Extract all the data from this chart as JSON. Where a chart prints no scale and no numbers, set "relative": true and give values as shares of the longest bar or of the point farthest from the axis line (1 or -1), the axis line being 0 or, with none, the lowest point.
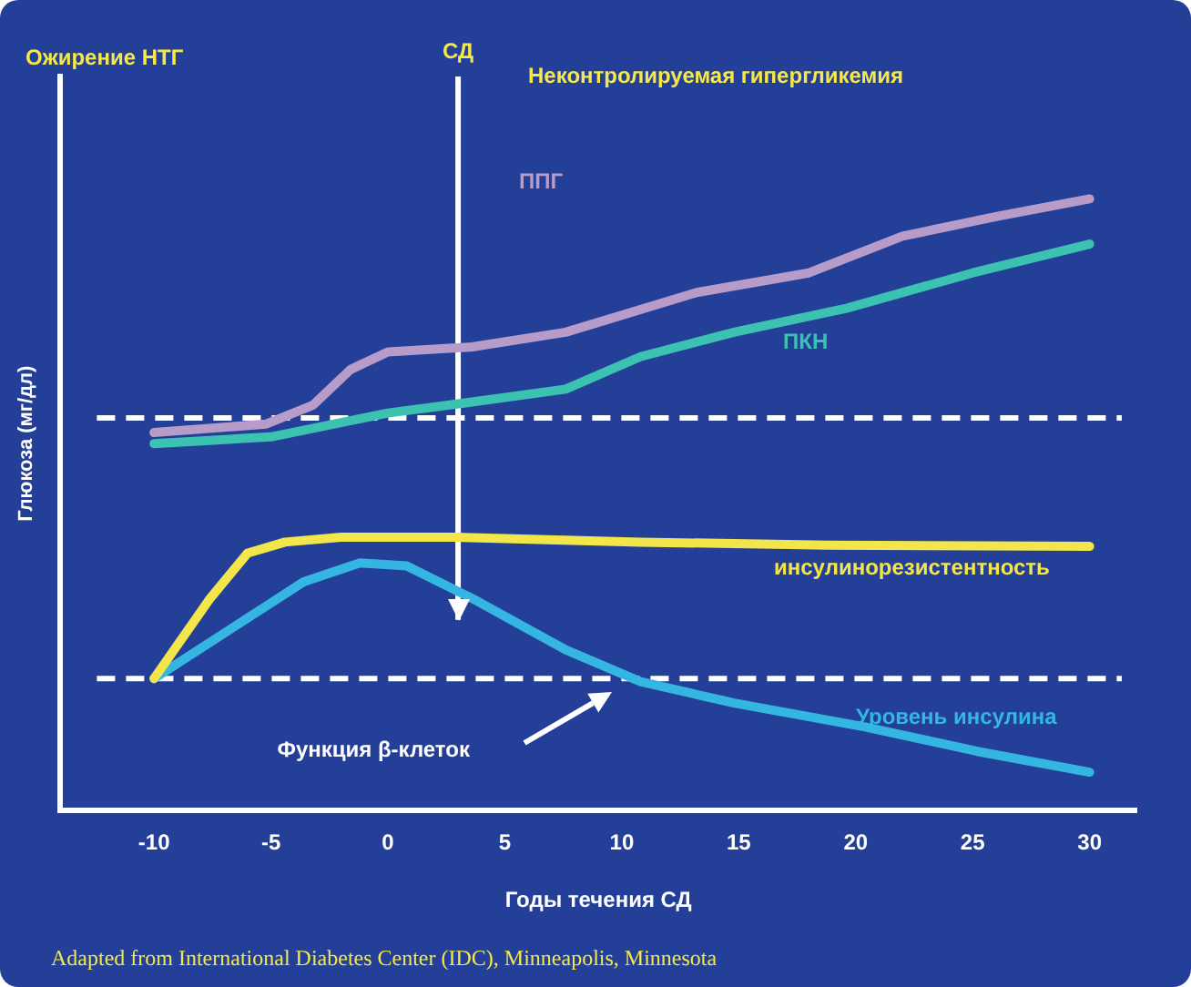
{
  "chart_data": {
    "type": "line",
    "relative": true,
    "xlabel": "Годы течения СД",
    "ylabel": "Глюкоза (мг/дл)",
    "xlim": [
      -14,
      32
    ],
    "xticks": [
      -10,
      -5,
      0,
      5,
      10,
      15,
      20,
      25,
      30
    ],
    "grid": false,
    "legend": false,
    "marker": "none",
    "line_style": "solid",
    "series": [
      {
        "name": "ППГ",
        "color": "#b79cc9",
        "x": [
          -10,
          -5.2,
          -3.2,
          -1.6,
          0,
          3.6,
          7.6,
          13.2,
          18,
          22,
          26,
          30
        ],
        "values": [
          0.618,
          0.632,
          0.663,
          0.721,
          0.75,
          0.758,
          0.782,
          0.847,
          0.879,
          0.939,
          0.971,
          1
        ]
      },
      {
        "name": "ПКН",
        "color": "#3cc2b0",
        "x": [
          -10,
          -5,
          0,
          3.6,
          7.6,
          10.8,
          14.8,
          19.6,
          25,
          30
        ],
        "values": [
          0.6,
          0.611,
          0.65,
          0.668,
          0.689,
          0.742,
          0.782,
          0.821,
          0.879,
          0.926
        ]
      },
      {
        "name": "инсулинорезистентность",
        "color": "#f2e64a",
        "x": [
          -10,
          -7.6,
          -6,
          -4.4,
          -2,
          2.8,
          10.8,
          18.8,
          30
        ],
        "values": [
          0.216,
          0.347,
          0.421,
          0.439,
          0.447,
          0.447,
          0.439,
          0.434,
          0.432
        ]
      },
      {
        "name": "Уровень инсулина",
        "color": "#35b6e2",
        "x": [
          -10,
          -6.8,
          -3.6,
          -1.2,
          0.8,
          3.6,
          7.6,
          10.8,
          14.8,
          20.4,
          25.2,
          30
        ],
        "values": [
          0.216,
          0.295,
          0.374,
          0.405,
          0.4,
          0.347,
          0.263,
          0.211,
          0.176,
          0.137,
          0.097,
          0.063
        ]
      }
    ],
    "ref_lines": [
      {
        "axis": "x",
        "value": 3,
        "label": "СД",
        "color": "#ffffff",
        "line_style": "solid"
      },
      {
        "axis": "y",
        "value": 0.642,
        "color": "#ffffff",
        "line_style": "dashed"
      },
      {
        "axis": "y",
        "value": 0.216,
        "color": "#ffffff",
        "line_style": "dashed"
      }
    ],
    "annotations": [
      "Ожирение НТГ",
      "Неконтролируемая гипергликемия",
      "Функция β-клеток",
      "Adapted from International Diabetes Center (IDC), Minneapolis, Minnesota"
    ]
  }
}
